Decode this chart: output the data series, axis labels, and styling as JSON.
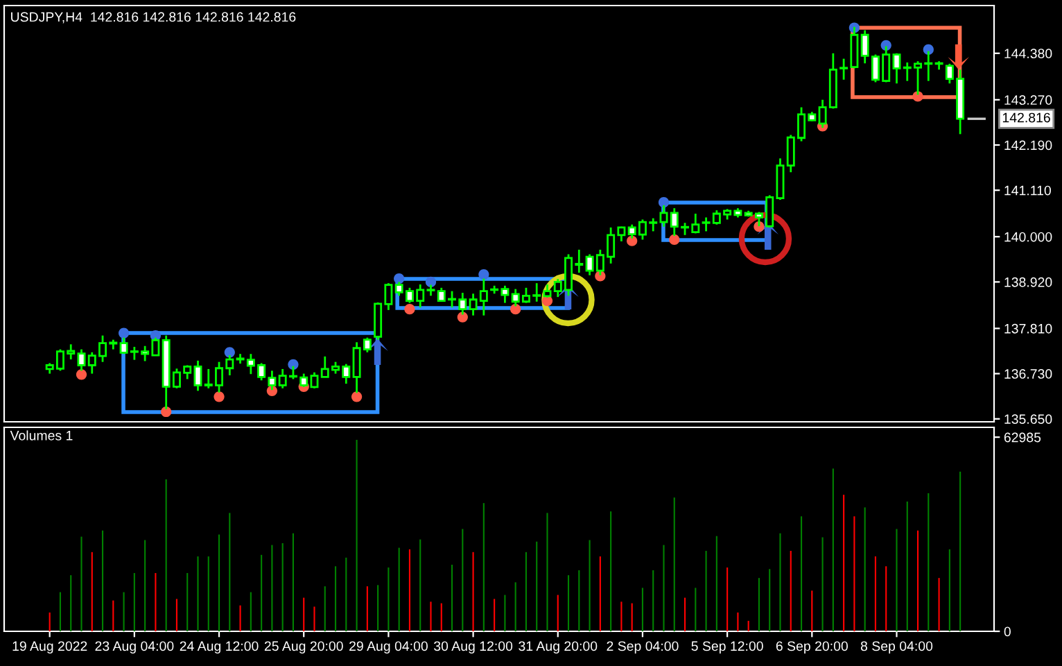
{
  "chart_data": [
    {
      "type": "candlestick",
      "title": "USDJPY,H4  142.816 142.816 142.816 142.816",
      "categories": [
        null,
        null,
        null,
        null,
        null,
        null,
        null,
        null,
        null,
        null,
        null,
        null,
        null,
        null,
        null,
        null,
        null,
        null,
        null,
        null,
        null,
        null,
        null,
        null,
        null,
        null,
        null,
        null,
        null,
        null,
        null,
        null,
        null,
        null,
        null,
        null,
        null,
        null,
        null,
        null,
        null,
        null,
        null,
        null,
        null,
        null,
        null,
        null,
        null,
        null,
        null,
        null,
        null,
        null,
        null,
        null,
        null,
        null,
        null,
        null,
        null,
        null,
        null,
        null,
        null,
        null,
        null,
        null,
        null,
        null,
        null,
        null,
        null,
        null,
        null,
        null,
        null,
        null,
        null,
        null,
        null,
        null,
        null,
        null,
        null,
        null,
        null
      ],
      "color": "#00ff00",
      "ohlc": [
        [
          136.84,
          136.98,
          136.73,
          136.93
        ],
        [
          136.85,
          137.31,
          136.8,
          137.26
        ],
        [
          137.21,
          137.43,
          137.07,
          137.27
        ],
        [
          137.21,
          137.31,
          136.8,
          136.93
        ],
        [
          136.93,
          137.24,
          136.73,
          137.16
        ],
        [
          137.15,
          137.64,
          137.01,
          137.46
        ],
        [
          137.45,
          137.54,
          137.31,
          137.47
        ],
        [
          137.46,
          137.59,
          137.2,
          137.23
        ],
        [
          137.25,
          137.37,
          137.06,
          137.26
        ],
        [
          137.26,
          137.39,
          137.03,
          137.2
        ],
        [
          137.17,
          137.59,
          137.17,
          137.53
        ],
        [
          137.53,
          137.64,
          135.88,
          136.42
        ],
        [
          136.42,
          136.85,
          136.38,
          136.76
        ],
        [
          136.75,
          136.93,
          136.6,
          136.9
        ],
        [
          136.9,
          137.04,
          136.32,
          136.45
        ],
        [
          136.45,
          136.84,
          136.38,
          136.47
        ],
        [
          136.45,
          137.01,
          136.28,
          136.86
        ],
        [
          136.86,
          137.17,
          136.69,
          137.07
        ],
        [
          137.07,
          137.2,
          136.97,
          137.09
        ],
        [
          137.06,
          137.2,
          136.72,
          136.92
        ],
        [
          136.93,
          136.98,
          136.57,
          136.65
        ],
        [
          136.63,
          136.8,
          136.34,
          136.45
        ],
        [
          136.45,
          136.84,
          136.38,
          136.68
        ],
        [
          136.66,
          136.91,
          136.6,
          136.67
        ],
        [
          136.64,
          136.73,
          136.41,
          136.45
        ],
        [
          136.41,
          136.76,
          136.38,
          136.68
        ],
        [
          136.65,
          137.14,
          136.64,
          136.84
        ],
        [
          136.82,
          137.01,
          136.73,
          136.9
        ],
        [
          136.9,
          136.96,
          136.49,
          136.65
        ],
        [
          136.65,
          137.48,
          136.27,
          137.34
        ],
        [
          137.54,
          137.59,
          137.24,
          137.31
        ],
        [
          137.61,
          138.43,
          137.54,
          138.4
        ],
        [
          138.39,
          138.89,
          138.25,
          138.85
        ],
        [
          138.85,
          138.92,
          138.59,
          138.67
        ],
        [
          138.7,
          138.78,
          138.42,
          138.47
        ],
        [
          138.47,
          138.86,
          138.31,
          138.73
        ],
        [
          138.72,
          138.85,
          138.59,
          138.73
        ],
        [
          138.7,
          138.78,
          138.45,
          138.47
        ],
        [
          138.5,
          138.7,
          138.31,
          138.51
        ],
        [
          138.5,
          138.66,
          138.14,
          138.27
        ],
        [
          138.27,
          138.64,
          138.12,
          138.5
        ],
        [
          138.47,
          139.0,
          138.12,
          138.7
        ],
        [
          138.73,
          138.83,
          138.64,
          138.74
        ],
        [
          138.75,
          138.83,
          138.42,
          138.61
        ],
        [
          138.63,
          138.75,
          138.34,
          138.45
        ],
        [
          138.45,
          138.78,
          138.42,
          138.59
        ],
        [
          138.59,
          138.89,
          138.45,
          138.6
        ],
        [
          138.58,
          138.86,
          138.55,
          138.7
        ],
        [
          138.7,
          138.99,
          138.56,
          138.92
        ],
        [
          138.73,
          139.58,
          138.59,
          139.49
        ],
        [
          139.33,
          139.69,
          139.14,
          139.35
        ],
        [
          139.52,
          139.58,
          139.08,
          139.19
        ],
        [
          139.19,
          139.69,
          139.08,
          139.56
        ],
        [
          139.52,
          140.22,
          139.36,
          140.04
        ],
        [
          140.04,
          140.24,
          139.89,
          140.22
        ],
        [
          140.22,
          140.29,
          139.96,
          140.06
        ],
        [
          140.05,
          140.41,
          139.93,
          140.35
        ],
        [
          140.33,
          140.44,
          140.13,
          140.34
        ],
        [
          140.35,
          140.75,
          140.24,
          140.57
        ],
        [
          140.57,
          140.68,
          140.02,
          140.24
        ],
        [
          140.22,
          140.33,
          140.04,
          140.23
        ],
        [
          140.11,
          140.55,
          140.08,
          140.29
        ],
        [
          140.33,
          140.46,
          140.13,
          140.34
        ],
        [
          140.33,
          140.63,
          140.29,
          140.55
        ],
        [
          140.53,
          140.66,
          140.41,
          140.62
        ],
        [
          140.62,
          140.68,
          140.46,
          140.52
        ],
        [
          140.57,
          140.62,
          140.48,
          140.51
        ],
        [
          140.55,
          140.59,
          140.25,
          140.46
        ],
        [
          140.25,
          140.99,
          140.22,
          140.94
        ],
        [
          140.92,
          141.87,
          140.88,
          141.7
        ],
        [
          141.7,
          142.43,
          141.54,
          142.37
        ],
        [
          142.36,
          143.09,
          142.28,
          142.92
        ],
        [
          142.92,
          142.98,
          142.76,
          142.78
        ],
        [
          142.7,
          143.27,
          142.6,
          143.09
        ],
        [
          143.09,
          144.38,
          143.06,
          143.99
        ],
        [
          144.02,
          144.25,
          143.75,
          144.03
        ],
        [
          144.05,
          145.01,
          144.02,
          144.82
        ],
        [
          144.82,
          144.93,
          144.14,
          144.32
        ],
        [
          144.3,
          144.35,
          143.69,
          143.75
        ],
        [
          143.72,
          144.55,
          143.69,
          144.35
        ],
        [
          144.35,
          144.38,
          143.66,
          144.02
        ],
        [
          144.03,
          144.16,
          143.72,
          144.04
        ],
        [
          144.04,
          144.19,
          143.39,
          144.13
        ],
        [
          144.13,
          144.43,
          143.72,
          144.14
        ],
        [
          144.13,
          144.19,
          143.99,
          144.14
        ],
        [
          144.08,
          144.13,
          143.66,
          143.77
        ],
        [
          143.77,
          143.99,
          142.45,
          142.816
        ]
      ],
      "series": [
        {
          "type": "scatter",
          "color": "#3a6fe0",
          "values": [
            null,
            null,
            null,
            null,
            null,
            null,
            null,
            137.7,
            null,
            null,
            137.64,
            null,
            null,
            null,
            null,
            null,
            null,
            137.24,
            null,
            null,
            null,
            null,
            null,
            136.95,
            null,
            null,
            null,
            null,
            null,
            null,
            null,
            null,
            null,
            139.0,
            null,
            null,
            138.92,
            null,
            null,
            null,
            null,
            139.1,
            null,
            null,
            null,
            null,
            null,
            null,
            null,
            null,
            null,
            null,
            null,
            null,
            null,
            null,
            null,
            null,
            140.82,
            null,
            null,
            null,
            null,
            null,
            null,
            null,
            null,
            null,
            null,
            null,
            null,
            null,
            null,
            null,
            null,
            null,
            144.99,
            null,
            null,
            144.57,
            null,
            null,
            null,
            144.47,
            null,
            null,
            null
          ]
        },
        {
          "type": "scatter",
          "color": "#ff5a46",
          "values": [
            null,
            null,
            null,
            136.71,
            null,
            null,
            null,
            null,
            null,
            null,
            null,
            135.82,
            null,
            null,
            null,
            null,
            136.18,
            null,
            null,
            null,
            null,
            136.32,
            null,
            null,
            136.42,
            null,
            null,
            null,
            null,
            136.18,
            null,
            null,
            null,
            null,
            138.27,
            null,
            null,
            null,
            null,
            138.08,
            null,
            null,
            null,
            null,
            138.27,
            null,
            null,
            138.47,
            null,
            null,
            null,
            null,
            139.06,
            null,
            null,
            139.9,
            null,
            null,
            null,
            139.93,
            null,
            null,
            null,
            null,
            null,
            null,
            null,
            140.24,
            null,
            null,
            null,
            null,
            null,
            142.64,
            null,
            null,
            null,
            null,
            null,
            null,
            null,
            null,
            143.35,
            null,
            null,
            null,
            null
          ]
        }
      ],
      "marker": "circle",
      "ylim": [
        135.58,
        145.52
      ],
      "yticks": [
        {
          "value": 144.38,
          "label": "144.380"
        },
        {
          "value": 143.27,
          "label": "143.270"
        },
        {
          "value": 142.19,
          "label": "142.190"
        },
        {
          "value": 141.11,
          "label": "141.110"
        },
        {
          "value": 140.0,
          "label": "140.000"
        },
        {
          "value": 138.92,
          "label": "138.920"
        },
        {
          "value": 137.81,
          "label": "137.810"
        },
        {
          "value": 136.73,
          "label": "136.730"
        },
        {
          "value": 135.65,
          "label": "135.650"
        }
      ],
      "ref_lines": [
        {
          "axis": "y",
          "value": 142.816,
          "label": "142.816"
        }
      ],
      "tick_labels": "y"
    },
    {
      "type": "bar",
      "title": "Volumes 1",
      "categories": [
        "19 Aug 2022",
        null,
        null,
        null,
        null,
        null,
        null,
        null,
        "23 Aug 04:00",
        null,
        null,
        null,
        null,
        null,
        null,
        null,
        "24 Aug 12:00",
        null,
        null,
        null,
        null,
        null,
        null,
        null,
        "25 Aug 20:00",
        null,
        null,
        null,
        null,
        null,
        null,
        null,
        "29 Aug 04:00",
        null,
        null,
        null,
        null,
        null,
        null,
        null,
        "30 Aug 12:00",
        null,
        null,
        null,
        null,
        null,
        null,
        null,
        "31 Aug 20:00",
        null,
        null,
        null,
        null,
        null,
        null,
        null,
        "2 Sep 04:00",
        null,
        null,
        null,
        null,
        null,
        null,
        null,
        "5 Sep 12:00",
        null,
        null,
        null,
        null,
        null,
        null,
        null,
        "6 Sep 20:00",
        null,
        null,
        null,
        null,
        null,
        null,
        null,
        "8 Sep 04:00",
        null,
        null,
        null,
        null,
        null,
        null
      ],
      "values": [
        6100,
        12700,
        18200,
        30700,
        25700,
        32700,
        10000,
        12700,
        18900,
        29600,
        18900,
        49300,
        10500,
        18900,
        24300,
        24300,
        31400,
        38400,
        8400,
        12700,
        24800,
        28000,
        28600,
        31800,
        10900,
        8000,
        14600,
        21100,
        23900,
        62100,
        14600,
        15000,
        20700,
        27100,
        26600,
        29800,
        9600,
        9100,
        21600,
        33200,
        25700,
        41600,
        10500,
        11800,
        15900,
        25700,
        29100,
        38400,
        11800,
        18200,
        19800,
        29600,
        24300,
        38900,
        9600,
        9100,
        14100,
        19800,
        28000,
        43400,
        10900,
        14100,
        26100,
        30900,
        20700,
        6100,
        3400,
        17300,
        20200,
        31800,
        26100,
        37300,
        13200,
        30500,
        52800,
        44300,
        37300,
        40200,
        24300,
        21100,
        33200,
        42100,
        32700,
        44800,
        17300,
        26600,
        51800
      ],
      "colors": [
        "#ff0000",
        "#008000",
        "#008000",
        "#008000",
        "#ff0000",
        "#008000",
        "#ff0000",
        "#008000",
        "#008000",
        "#008000",
        "#ff0000",
        "#008000",
        "#ff0000",
        "#008000",
        "#008000",
        "#008000",
        "#008000",
        "#008000",
        "#ff0000",
        "#008000",
        "#008000",
        "#008000",
        "#008000",
        "#008000",
        "#ff0000",
        "#ff0000",
        "#008000",
        "#008000",
        "#008000",
        "#008000",
        "#ff0000",
        "#008000",
        "#008000",
        "#008000",
        "#ff0000",
        "#008000",
        "#ff0000",
        "#ff0000",
        "#008000",
        "#008000",
        "#ff0000",
        "#008000",
        "#ff0000",
        "#008000",
        "#008000",
        "#008000",
        "#008000",
        "#008000",
        "#ff0000",
        "#008000",
        "#008000",
        "#008000",
        "#ff0000",
        "#008000",
        "#ff0000",
        "#ff0000",
        "#008000",
        "#008000",
        "#008000",
        "#008000",
        "#ff0000",
        "#008000",
        "#008000",
        "#008000",
        "#ff0000",
        "#ff0000",
        "#ff0000",
        "#008000",
        "#008000",
        "#008000",
        "#ff0000",
        "#008000",
        "#ff0000",
        "#008000",
        "#008000",
        "#ff0000",
        "#ff0000",
        "#008000",
        "#ff0000",
        "#ff0000",
        "#008000",
        "#008000",
        "#ff0000",
        "#008000",
        "#ff0000",
        "#008000",
        "#008000"
      ],
      "ylim": [
        0,
        66170
      ],
      "yticks": [
        0,
        62985
      ]
    }
  ]
}
